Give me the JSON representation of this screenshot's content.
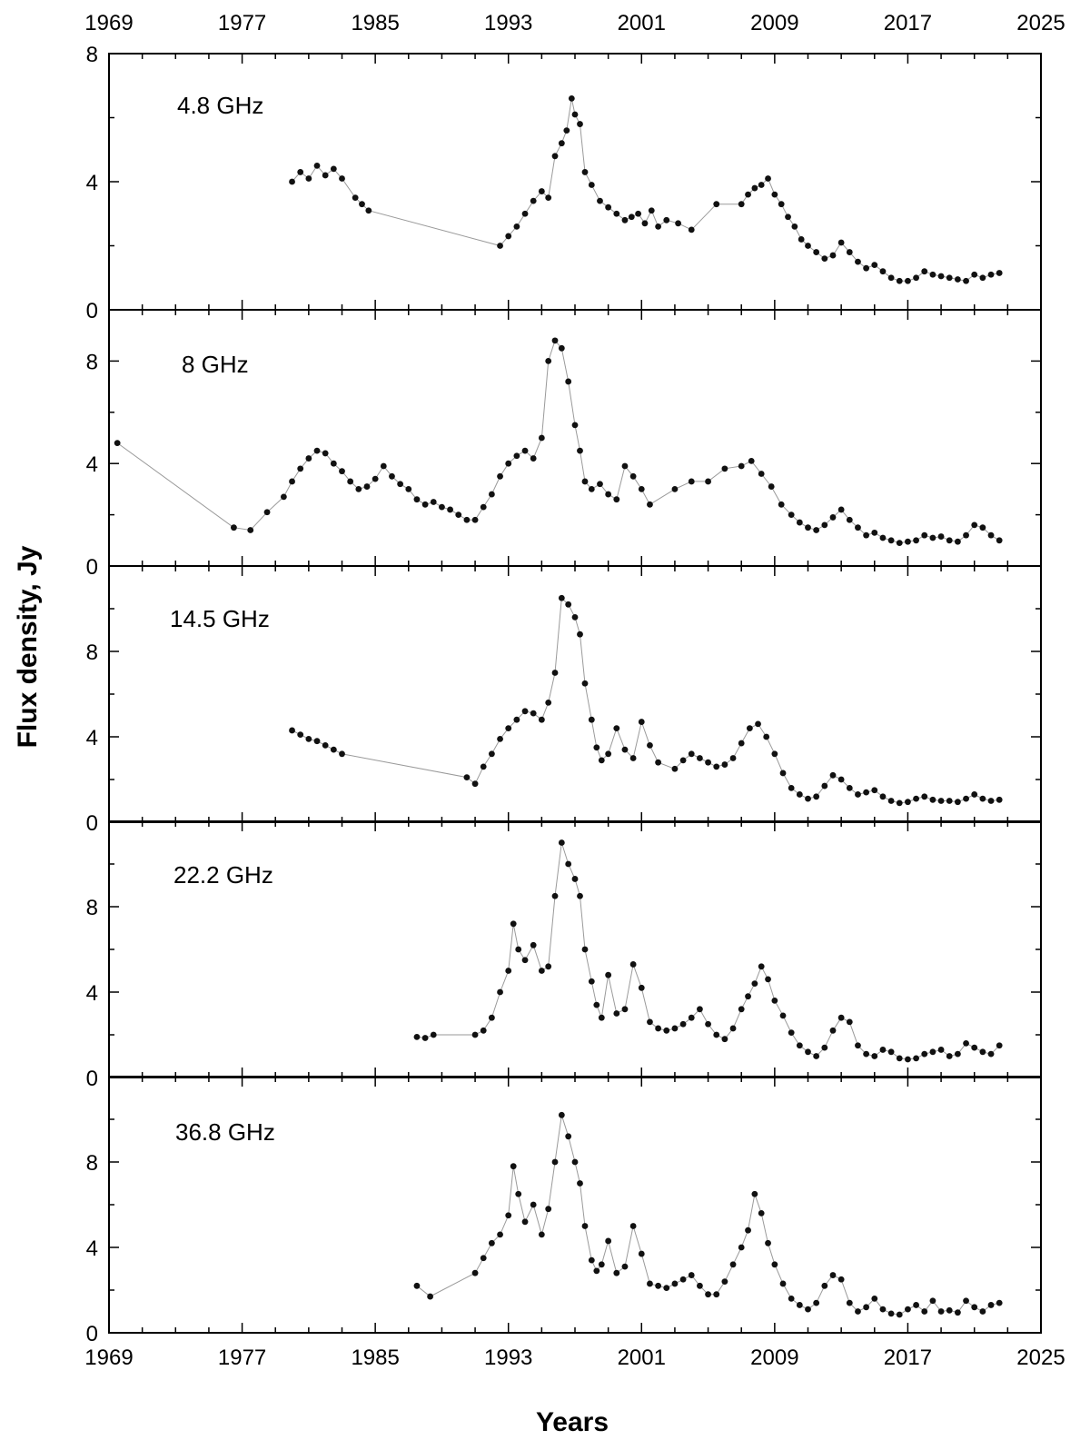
{
  "chart_data": {
    "type": "scatter",
    "xlabel": "Years",
    "ylabel": "Flux density, Jy",
    "xlim": [
      1969,
      2025
    ],
    "x_ticks": [
      "1969",
      "1977",
      "1985",
      "1993",
      "2001",
      "2009",
      "2017",
      "2025"
    ],
    "grid": false,
    "marker_color": "#111111",
    "line_color": "#9a9a9a",
    "panels": [
      {
        "label": "4.8 GHz",
        "ylim": [
          0,
          8
        ],
        "y_ticks": [
          "0",
          "4",
          "8"
        ],
        "series": [
          {
            "x": [
              1980.0,
              1980.5,
              1981.0,
              1981.5,
              1982.0,
              1982.5,
              1983.0,
              1983.8,
              1984.2,
              1984.6,
              1992.5,
              1993.0,
              1993.5,
              1994.0,
              1994.5,
              1995.0,
              1995.4,
              1995.8,
              1996.2,
              1996.5,
              1996.8,
              1997.0,
              1997.3,
              1997.6,
              1998.0,
              1998.5,
              1999.0,
              1999.5,
              2000.0,
              2000.4,
              2000.8,
              2001.2,
              2001.6,
              2002.0,
              2002.5,
              2003.2,
              2004.0,
              2005.5,
              2007.0,
              2007.4,
              2007.8,
              2008.2,
              2008.6,
              2009.0,
              2009.4,
              2009.8,
              2010.2,
              2010.6,
              2011.0,
              2011.5,
              2012.0,
              2012.5,
              2013.0,
              2013.5,
              2014.0,
              2014.5,
              2015.0,
              2015.5,
              2016.0,
              2016.5,
              2017.0,
              2017.5,
              2018.0,
              2018.5,
              2019.0,
              2019.5,
              2020.0,
              2020.5,
              2021.0,
              2021.5,
              2022.0,
              2022.5
            ],
            "y": [
              4.0,
              4.3,
              4.1,
              4.5,
              4.2,
              4.4,
              4.1,
              3.5,
              3.3,
              3.1,
              2.0,
              2.3,
              2.6,
              3.0,
              3.4,
              3.7,
              3.5,
              4.8,
              5.2,
              5.6,
              6.6,
              6.1,
              5.8,
              4.3,
              3.9,
              3.4,
              3.2,
              3.0,
              2.8,
              2.9,
              3.0,
              2.7,
              3.1,
              2.6,
              2.8,
              2.7,
              2.5,
              3.3,
              3.3,
              3.6,
              3.8,
              3.9,
              4.1,
              3.6,
              3.3,
              2.9,
              2.6,
              2.2,
              2.0,
              1.8,
              1.6,
              1.7,
              2.1,
              1.8,
              1.5,
              1.3,
              1.4,
              1.2,
              1.0,
              0.9,
              0.9,
              1.0,
              1.2,
              1.1,
              1.05,
              1.0,
              0.95,
              0.9,
              1.1,
              1.0,
              1.1,
              1.15
            ]
          }
        ]
      },
      {
        "label": "8 GHz",
        "ylim": [
          0,
          10
        ],
        "y_ticks": [
          "0",
          "4",
          "8"
        ],
        "series": [
          {
            "x": [
              1969.5,
              1976.5,
              1977.5,
              1978.5,
              1979.5,
              1980.0,
              1980.5,
              1981.0,
              1981.5,
              1982.0,
              1982.5,
              1983.0,
              1983.5,
              1984.0,
              1984.5,
              1985.0,
              1985.5,
              1986.0,
              1986.5,
              1987.0,
              1987.5,
              1988.0,
              1988.5,
              1989.0,
              1989.5,
              1990.0,
              1990.5,
              1991.0,
              1991.5,
              1992.0,
              1992.5,
              1993.0,
              1993.5,
              1994.0,
              1994.5,
              1995.0,
              1995.4,
              1995.8,
              1996.2,
              1996.6,
              1997.0,
              1997.3,
              1997.6,
              1998.0,
              1998.5,
              1999.0,
              1999.5,
              2000.0,
              2000.5,
              2001.0,
              2001.5,
              2003.0,
              2004.0,
              2005.0,
              2006.0,
              2007.0,
              2007.6,
              2008.2,
              2008.8,
              2009.4,
              2010.0,
              2010.5,
              2011.0,
              2011.5,
              2012.0,
              2012.5,
              2013.0,
              2013.5,
              2014.0,
              2014.5,
              2015.0,
              2015.5,
              2016.0,
              2016.5,
              2017.0,
              2017.5,
              2018.0,
              2018.5,
              2019.0,
              2019.5,
              2020.0,
              2020.5,
              2021.0,
              2021.5,
              2022.0,
              2022.5
            ],
            "y": [
              4.8,
              1.5,
              1.4,
              2.1,
              2.7,
              3.3,
              3.8,
              4.2,
              4.5,
              4.4,
              4.0,
              3.7,
              3.3,
              3.0,
              3.1,
              3.4,
              3.9,
              3.5,
              3.2,
              3.0,
              2.6,
              2.4,
              2.5,
              2.3,
              2.2,
              2.0,
              1.8,
              1.8,
              2.3,
              2.8,
              3.5,
              4.0,
              4.3,
              4.5,
              4.2,
              5.0,
              8.0,
              8.8,
              8.5,
              7.2,
              5.5,
              4.5,
              3.3,
              3.0,
              3.2,
              2.8,
              2.6,
              3.9,
              3.5,
              3.0,
              2.4,
              3.0,
              3.3,
              3.3,
              3.8,
              3.9,
              4.1,
              3.6,
              3.1,
              2.4,
              2.0,
              1.7,
              1.5,
              1.4,
              1.6,
              1.9,
              2.2,
              1.8,
              1.5,
              1.2,
              1.3,
              1.1,
              1.0,
              0.9,
              0.95,
              1.0,
              1.2,
              1.1,
              1.15,
              1.0,
              0.95,
              1.2,
              1.6,
              1.5,
              1.2,
              1.0
            ]
          }
        ]
      },
      {
        "label": "14.5 GHz",
        "ylim": [
          0,
          12
        ],
        "y_ticks": [
          "0",
          "4",
          "8"
        ],
        "series": [
          {
            "x": [
              1980.0,
              1980.5,
              1981.0,
              1981.5,
              1982.0,
              1982.5,
              1983.0,
              1990.5,
              1991.0,
              1991.5,
              1992.0,
              1992.5,
              1993.0,
              1993.5,
              1994.0,
              1994.5,
              1995.0,
              1995.4,
              1995.8,
              1996.2,
              1996.6,
              1997.0,
              1997.3,
              1997.6,
              1998.0,
              1998.3,
              1998.6,
              1999.0,
              1999.5,
              2000.0,
              2000.5,
              2001.0,
              2001.5,
              2002.0,
              2003.0,
              2003.5,
              2004.0,
              2004.5,
              2005.0,
              2005.5,
              2006.0,
              2006.5,
              2007.0,
              2007.5,
              2008.0,
              2008.5,
              2009.0,
              2009.5,
              2010.0,
              2010.5,
              2011.0,
              2011.5,
              2012.0,
              2012.5,
              2013.0,
              2013.5,
              2014.0,
              2014.5,
              2015.0,
              2015.5,
              2016.0,
              2016.5,
              2017.0,
              2017.5,
              2018.0,
              2018.5,
              2019.0,
              2019.5,
              2020.0,
              2020.5,
              2021.0,
              2021.5,
              2022.0,
              2022.5
            ],
            "y": [
              4.3,
              4.1,
              3.9,
              3.8,
              3.6,
              3.4,
              3.2,
              2.1,
              1.8,
              2.6,
              3.2,
              3.9,
              4.4,
              4.8,
              5.2,
              5.1,
              4.8,
              5.6,
              7.0,
              10.5,
              10.2,
              9.6,
              8.8,
              6.5,
              4.8,
              3.5,
              2.9,
              3.2,
              4.4,
              3.4,
              3.0,
              4.7,
              3.6,
              2.8,
              2.5,
              2.9,
              3.2,
              3.0,
              2.8,
              2.6,
              2.7,
              3.0,
              3.7,
              4.4,
              4.6,
              4.0,
              3.2,
              2.3,
              1.6,
              1.3,
              1.1,
              1.2,
              1.7,
              2.2,
              2.0,
              1.6,
              1.3,
              1.4,
              1.5,
              1.2,
              1.0,
              0.9,
              0.95,
              1.1,
              1.2,
              1.05,
              1.0,
              1.0,
              0.95,
              1.1,
              1.3,
              1.1,
              1.0,
              1.05
            ]
          }
        ]
      },
      {
        "label": "22.2 GHz",
        "ylim": [
          0,
          12
        ],
        "y_ticks": [
          "0",
          "4",
          "8"
        ],
        "series": [
          {
            "x": [
              1987.5,
              1988.0,
              1988.5,
              1991.0,
              1991.5,
              1992.0,
              1992.5,
              1993.0,
              1993.3,
              1993.6,
              1994.0,
              1994.5,
              1995.0,
              1995.4,
              1995.8,
              1996.2,
              1996.6,
              1997.0,
              1997.3,
              1997.6,
              1998.0,
              1998.3,
              1998.6,
              1999.0,
              1999.5,
              2000.0,
              2000.5,
              2001.0,
              2001.5,
              2002.0,
              2002.5,
              2003.0,
              2003.5,
              2004.0,
              2004.5,
              2005.0,
              2005.5,
              2006.0,
              2006.5,
              2007.0,
              2007.4,
              2007.8,
              2008.2,
              2008.6,
              2009.0,
              2009.5,
              2010.0,
              2010.5,
              2011.0,
              2011.5,
              2012.0,
              2012.5,
              2013.0,
              2013.5,
              2014.0,
              2014.5,
              2015.0,
              2015.5,
              2016.0,
              2016.5,
              2017.0,
              2017.5,
              2018.0,
              2018.5,
              2019.0,
              2019.5,
              2020.0,
              2020.5,
              2021.0,
              2021.5,
              2022.0,
              2022.5
            ],
            "y": [
              1.9,
              1.85,
              2.0,
              2.0,
              2.2,
              2.8,
              4.0,
              5.0,
              7.2,
              6.0,
              5.5,
              6.2,
              5.0,
              5.2,
              8.5,
              11.0,
              10.0,
              9.3,
              8.5,
              6.0,
              4.5,
              3.4,
              2.8,
              4.8,
              3.0,
              3.2,
              5.3,
              4.2,
              2.6,
              2.3,
              2.2,
              2.3,
              2.5,
              2.8,
              3.2,
              2.5,
              2.0,
              1.8,
              2.3,
              3.2,
              3.8,
              4.4,
              5.2,
              4.6,
              3.6,
              2.9,
              2.1,
              1.5,
              1.2,
              1.0,
              1.4,
              2.2,
              2.8,
              2.6,
              1.5,
              1.1,
              1.0,
              1.3,
              1.2,
              0.9,
              0.85,
              0.9,
              1.1,
              1.2,
              1.3,
              1.0,
              1.1,
              1.6,
              1.4,
              1.2,
              1.1,
              1.5
            ]
          }
        ]
      },
      {
        "label": "36.8 GHz",
        "ylim": [
          0,
          12
        ],
        "y_ticks": [
          "0",
          "4",
          "8"
        ],
        "series": [
          {
            "x": [
              1987.5,
              1988.3,
              1991.0,
              1991.5,
              1992.0,
              1992.5,
              1993.0,
              1993.3,
              1993.6,
              1994.0,
              1994.5,
              1995.0,
              1995.4,
              1995.8,
              1996.2,
              1996.6,
              1997.0,
              1997.3,
              1997.6,
              1998.0,
              1998.3,
              1998.6,
              1999.0,
              1999.5,
              2000.0,
              2000.5,
              2001.0,
              2001.5,
              2002.0,
              2002.5,
              2003.0,
              2003.5,
              2004.0,
              2004.5,
              2005.0,
              2005.5,
              2006.0,
              2006.5,
              2007.0,
              2007.4,
              2007.8,
              2008.2,
              2008.6,
              2009.0,
              2009.5,
              2010.0,
              2010.5,
              2011.0,
              2011.5,
              2012.0,
              2012.5,
              2013.0,
              2013.5,
              2014.0,
              2014.5,
              2015.0,
              2015.5,
              2016.0,
              2016.5,
              2017.0,
              2017.5,
              2018.0,
              2018.5,
              2019.0,
              2019.5,
              2020.0,
              2020.5,
              2021.0,
              2021.5,
              2022.0,
              2022.5
            ],
            "y": [
              2.2,
              1.7,
              2.8,
              3.5,
              4.2,
              4.6,
              5.5,
              7.8,
              6.5,
              5.2,
              6.0,
              4.6,
              5.8,
              8.0,
              10.2,
              9.2,
              8.0,
              7.0,
              5.0,
              3.4,
              2.9,
              3.2,
              4.3,
              2.8,
              3.1,
              5.0,
              3.7,
              2.3,
              2.2,
              2.1,
              2.3,
              2.5,
              2.7,
              2.2,
              1.8,
              1.8,
              2.4,
              3.2,
              4.0,
              4.8,
              6.5,
              5.6,
              4.2,
              3.2,
              2.3,
              1.6,
              1.3,
              1.1,
              1.4,
              2.2,
              2.7,
              2.5,
              1.4,
              1.0,
              1.2,
              1.6,
              1.1,
              0.9,
              0.85,
              1.1,
              1.3,
              1.0,
              1.5,
              1.0,
              1.05,
              0.95,
              1.5,
              1.2,
              1.0,
              1.3,
              1.4
            ]
          }
        ]
      }
    ]
  }
}
